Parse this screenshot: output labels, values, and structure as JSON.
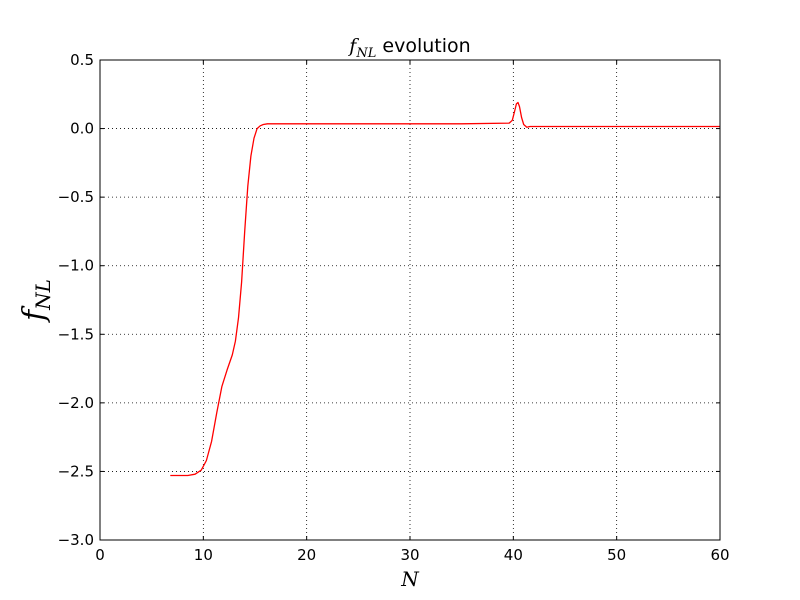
{
  "chart_data": {
    "type": "line",
    "title": {
      "symbol": "f",
      "subscript": "NL",
      "text": " evolution"
    },
    "xlabel": "N",
    "ylabel": {
      "symbol": "f",
      "subscript": "NL"
    },
    "xlim": [
      0,
      60
    ],
    "ylim": [
      -3.0,
      0.5
    ],
    "xticks": [
      0,
      10,
      20,
      30,
      40,
      50,
      60
    ],
    "xtick_labels": [
      "0",
      "10",
      "20",
      "30",
      "40",
      "50",
      "60"
    ],
    "yticks": [
      0.5,
      0.0,
      -0.5,
      -1.0,
      -1.5,
      -2.0,
      -2.5,
      -3.0
    ],
    "ytick_labels": [
      "0.5",
      "0.0",
      "−0.5",
      "−1.0",
      "−1.5",
      "−2.0",
      "−2.5",
      "−3.0"
    ],
    "grid": true,
    "series": [
      {
        "color": "#ff0000",
        "x": [
          6.8,
          7.5,
          8.5,
          9.2,
          9.8,
          10.3,
          10.8,
          11.3,
          11.8,
          12.3,
          12.8,
          13.1,
          13.4,
          13.7,
          14.0,
          14.3,
          14.6,
          14.9,
          15.2,
          15.5,
          15.8,
          16.2,
          16.6,
          17.2,
          18.0,
          19.5,
          22.0,
          30.0,
          35.0,
          39.6,
          39.9,
          40.1,
          40.3,
          40.45,
          40.6,
          40.8,
          41.0,
          41.3,
          41.6,
          42.2,
          43.0,
          50.0,
          60.0
        ],
        "y": [
          -2.53,
          -2.53,
          -2.53,
          -2.52,
          -2.49,
          -2.42,
          -2.28,
          -2.07,
          -1.88,
          -1.76,
          -1.65,
          -1.55,
          -1.38,
          -1.12,
          -0.75,
          -0.42,
          -0.2,
          -0.07,
          0.0,
          0.02,
          0.03,
          0.035,
          0.035,
          0.035,
          0.035,
          0.035,
          0.035,
          0.035,
          0.035,
          0.04,
          0.06,
          0.12,
          0.18,
          0.19,
          0.16,
          0.08,
          0.03,
          0.01,
          0.015,
          0.015,
          0.015,
          0.015,
          0.015
        ]
      }
    ]
  }
}
